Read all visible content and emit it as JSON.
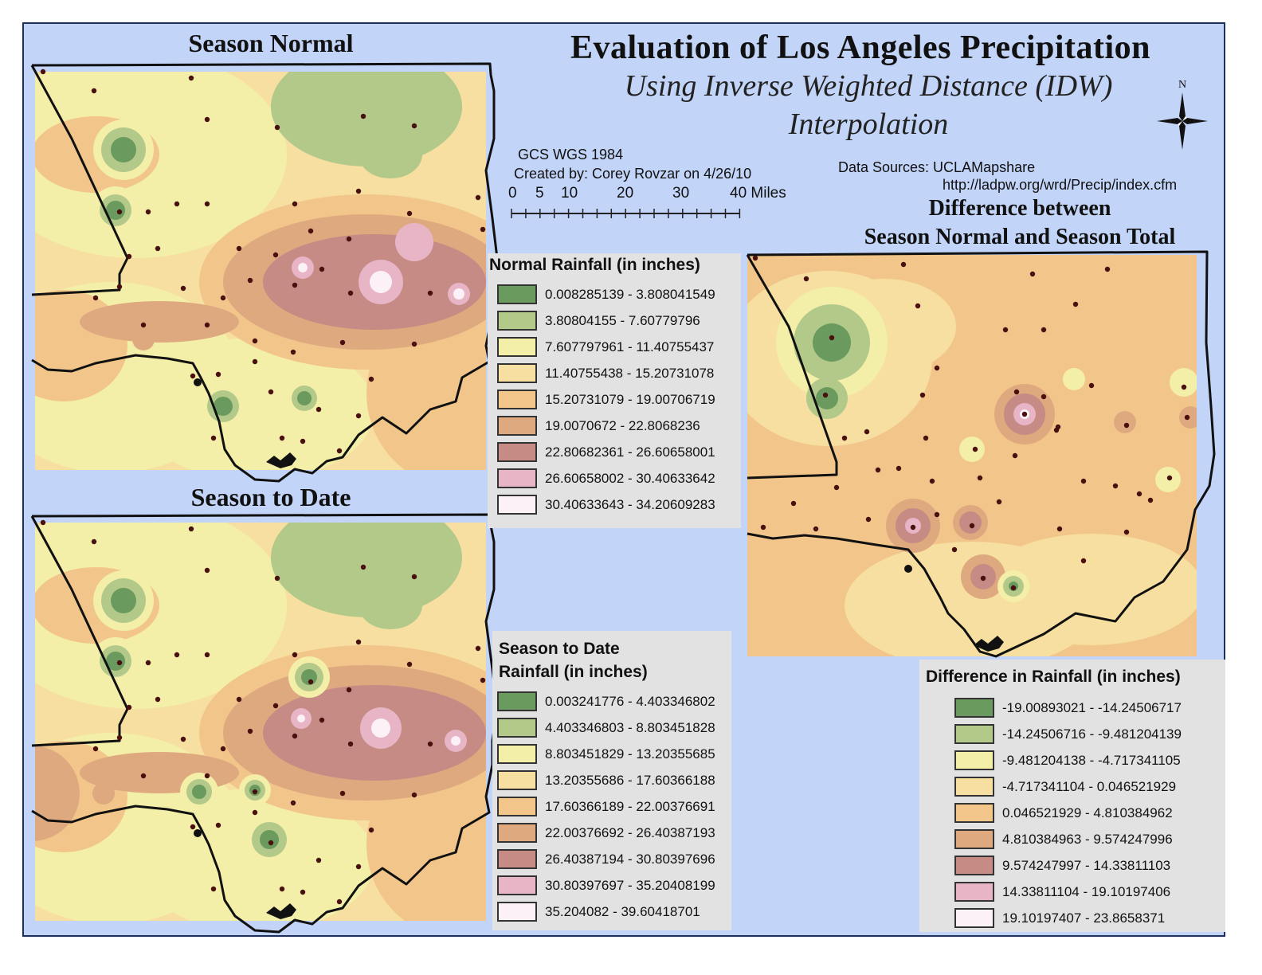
{
  "title": "Evaluation of  Los Angeles Precipitation",
  "subtitle_line1": "Using Inverse Weighted Distance (IDW)",
  "subtitle_line2": "Interpolation",
  "projection": "GCS WGS 1984",
  "credit": "Created by: Corey Rovzar on 4/26/10",
  "data_sources_label": "Data Sources: UCLAMapshare",
  "data_sources_url": "http://ladpw.org/wrd/Precip/index.cfm",
  "north_label": "N",
  "scale_bar": {
    "ticks": [
      "0",
      "5",
      "10",
      "20",
      "30",
      "40 Miles"
    ],
    "icon": "scale-bar-ruler"
  },
  "maps": {
    "normal_title": "Season Normal",
    "date_title": "Season to Date",
    "diff_title_line1": "Difference between",
    "diff_title_line2": "Season Normal and Season Total"
  },
  "colors": [
    "#6b9a5e",
    "#b3c98a",
    "#f3efa8",
    "#f6dfa0",
    "#f2c68a",
    "#dfa97f",
    "#c58b84",
    "#e7b5c6",
    "#fbf1f7"
  ],
  "legend_normal": {
    "title": "Normal Rainfall (in inches)",
    "items": [
      "0.008285139 - 3.808041549",
      "3.80804155 - 7.60779796",
      "7.607797961 - 11.40755437",
      "11.40755438 - 15.20731078",
      "15.20731079 - 19.00706719",
      "19.0070672 - 22.8068236",
      "22.80682361 - 26.60658001",
      "26.60658002 - 30.40633642",
      "30.40633643 - 34.20609283"
    ]
  },
  "legend_date": {
    "title_line1": "Season to Date",
    "title_line2": "Rainfall (in inches)",
    "items": [
      "0.003241776 - 4.403346802",
      "4.403346803 - 8.803451828",
      "8.803451829 - 13.20355685",
      "13.20355686 - 17.60366188",
      "17.60366189 - 22.00376691",
      "22.00376692 - 26.40387193",
      "26.40387194 - 30.80397696",
      "30.80397697 - 35.20408199",
      "35.204082 - 39.60418701"
    ]
  },
  "legend_diff": {
    "title": "Difference in Rainfall (in inches)",
    "items": [
      "-19.00893021 - -14.24506717",
      "-14.24506716 - -9.481204139",
      "-9.481204138 - -4.717341105",
      "-4.717341104 - 0.046521929",
      "0.046521929 - 4.810384962",
      "4.810384963 - 9.574247996",
      "9.574247997 - 14.33811103",
      "14.33811104 - 19.10197406",
      "19.10197407 - 23.8658371"
    ]
  }
}
